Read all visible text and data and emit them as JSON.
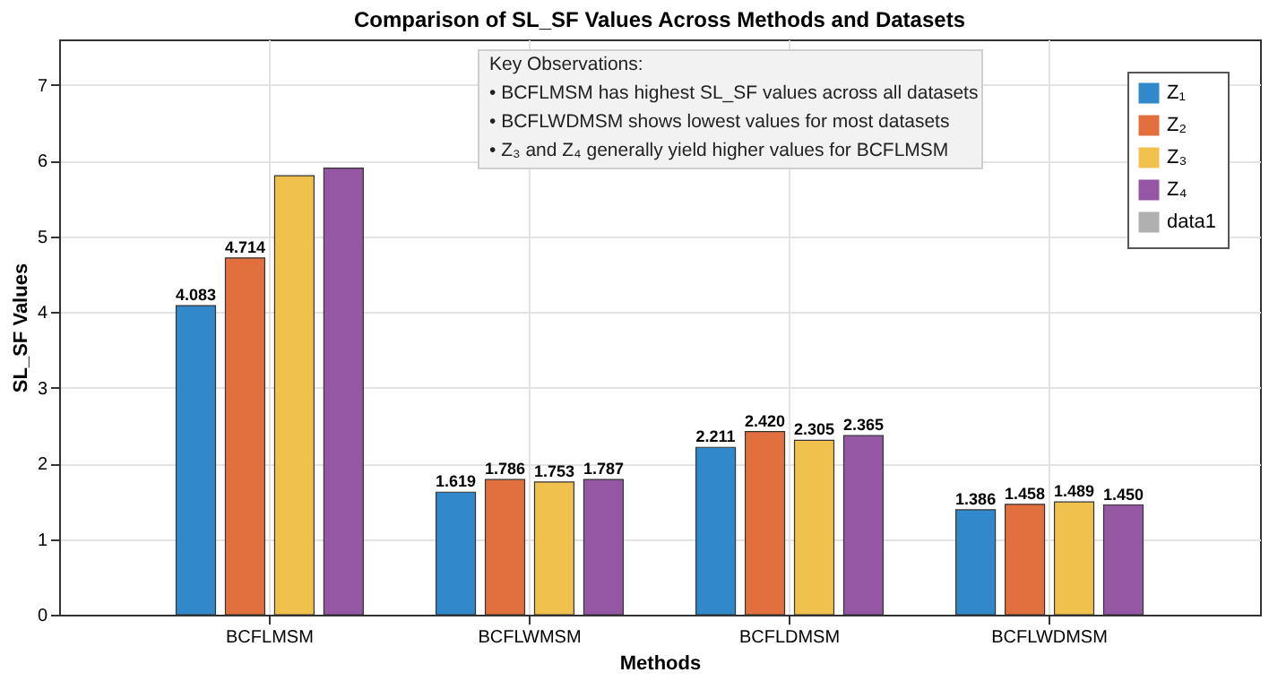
{
  "chart_data": {
    "type": "bar",
    "title": "Comparison of SL_SF Values Across Methods and Datasets",
    "xlabel": "Methods",
    "ylabel": "SL_SF Values",
    "categories": [
      "BCFLMSM",
      "BCFLWMSM",
      "BCFLDMSM",
      "BCFLWDMSM"
    ],
    "series": [
      {
        "name": "Z₁",
        "color": "#3189cb",
        "values": [
          4.083,
          1.619,
          2.211,
          1.386
        ],
        "value_labels": [
          "4.083",
          "1.619",
          "2.211",
          "1.386"
        ]
      },
      {
        "name": "Z₂",
        "color": "#e2703f",
        "values": [
          4.714,
          1.786,
          2.42,
          1.458
        ],
        "value_labels": [
          "4.714",
          "1.786",
          "2.420",
          "1.458"
        ]
      },
      {
        "name": "Z₃",
        "color": "#f1c14d",
        "values": [
          5.8,
          1.753,
          2.305,
          1.489
        ],
        "value_labels": [
          null,
          "1.753",
          "2.305",
          "1.489"
        ]
      },
      {
        "name": "Z₄",
        "color": "#9557a4",
        "values": [
          5.9,
          1.787,
          2.365,
          1.45
        ],
        "value_labels": [
          null,
          "1.787",
          "2.365",
          "1.450"
        ]
      },
      {
        "name": "data1",
        "type": "line",
        "color": "#b0b0b0",
        "values": [
          null,
          null,
          null,
          null
        ]
      }
    ],
    "ylim": [
      0,
      7.6
    ],
    "yticks": [
      0,
      1,
      2,
      3,
      4,
      5,
      6,
      7
    ],
    "grid": true,
    "legend": "top right",
    "annotations": [
      "Key Observations:",
      "• BCFLMSM has highest SL_SF values across all datasets",
      "• BCFLWDMSM shows lowest values for most datasets",
      "• Z₃ and Z₄ generally yield higher values for BCFLMSM"
    ]
  }
}
